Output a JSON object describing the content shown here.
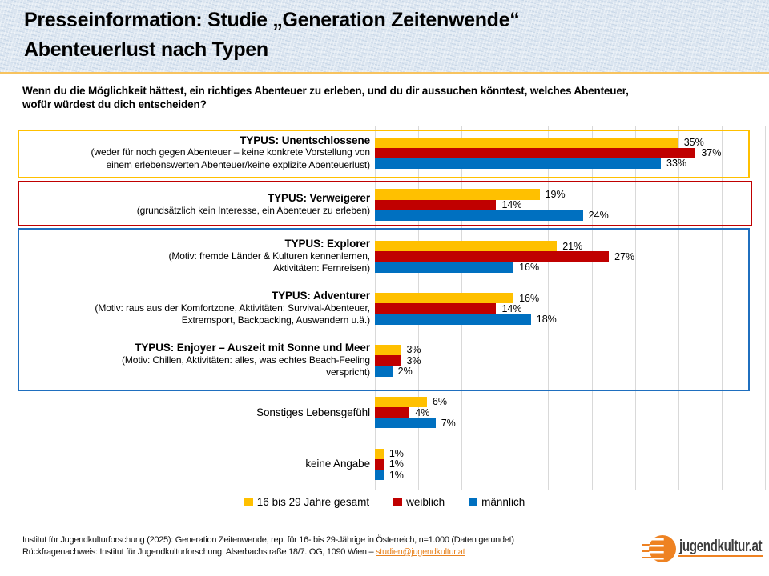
{
  "slide": {
    "title_line1": "Presseinformation: Studie „Generation Zeitenwende“",
    "title_line2": "Abenteuerlust nach Typen",
    "question_line1": "Wenn du die Möglichkeit hättest, ein richtiges Abenteuer zu erleben, und du dir aussuchen könntest, welches Abenteuer,",
    "question_line2": "wofür würdest du dich entscheiden?"
  },
  "chart_data": {
    "type": "bar",
    "orientation": "horizontal",
    "unit": "percent",
    "value_suffix": "%",
    "xlim": [
      0,
      45
    ],
    "gridline_step": 5,
    "grid": true,
    "legend_position": "bottom-center",
    "categories": [
      {
        "title": "TYPUS: Unentschlossene",
        "title_bold": true,
        "desc_lines": [
          "(weder für noch gegen Abenteuer – keine konkrete Vorstellung von",
          "einem erlebenswerten Abenteuer/keine explizite Abenteuerlust)"
        ]
      },
      {
        "title": "TYPUS: Verweigerer",
        "title_bold": true,
        "desc_lines": [
          "(grundsätzlich kein Interesse, ein Abenteuer zu erleben)"
        ]
      },
      {
        "title": "TYPUS: Explorer",
        "title_bold": true,
        "desc_lines": [
          "(Motiv: fremde Länder & Kulturen kennenlernen,",
          "Aktivitäten: Fernreisen)"
        ]
      },
      {
        "title": "TYPUS: Adventurer",
        "title_bold": true,
        "desc_lines": [
          "(Motiv: raus aus der Komfortzone, Aktivitäten: Survival-Abenteuer,",
          "Extremsport, Backpacking, Auswandern u.ä.)"
        ]
      },
      {
        "title": "TYPUS: Enjoyer – Auszeit mit Sonne und Meer",
        "title_bold": true,
        "desc_lines": [
          "(Motiv: Chillen, Aktivitäten: alles, was echtes Beach-Feeling",
          "verspricht)"
        ]
      },
      {
        "title": "Sonstiges Lebensgefühl",
        "title_bold": false,
        "desc_lines": []
      },
      {
        "title": "keine Angabe",
        "title_bold": false,
        "desc_lines": []
      }
    ],
    "series": [
      {
        "name": "16 bis 29 Jahre gesamt",
        "color": "#FFC000",
        "values": [
          35,
          19,
          21,
          16,
          3,
          6,
          1
        ]
      },
      {
        "name": "weiblich",
        "color": "#C00000",
        "values": [
          37,
          14,
          27,
          14,
          3,
          4,
          1
        ]
      },
      {
        "name": "männlich",
        "color": "#0070C0",
        "values": [
          33,
          24,
          16,
          18,
          2,
          7,
          1
        ]
      }
    ],
    "group_boxes": [
      {
        "category_indexes": [
          0
        ],
        "border_color": "#FFC000"
      },
      {
        "category_indexes": [
          1
        ],
        "border_color": "#C00000"
      },
      {
        "category_indexes": [
          2,
          3,
          4
        ],
        "border_color": "#1F6FBF"
      }
    ]
  },
  "footer": {
    "line1": "Institut für Jugendkulturforschung (2025): Generation Zeitenwende, rep. für 16- bis 29-Jährige in Österreich, n=1.000 (Daten gerundet)",
    "line2_prefix": "Rückfragenachweis: Institut für Jugendkulturforschung, Alserbachstraße 18/7. OG, 1090 Wien – ",
    "email": "studien@jugendkultur.at"
  },
  "logo": {
    "text": "jugendkultur.at"
  },
  "colors": {
    "accent_yellow": "#FFC000",
    "accent_red": "#C00000",
    "accent_blue": "#0070C0",
    "divider": "#F7C35F",
    "link_orange": "#E8821E",
    "logo_orange": "#EE8222",
    "gridline": "#D9D9D9"
  }
}
